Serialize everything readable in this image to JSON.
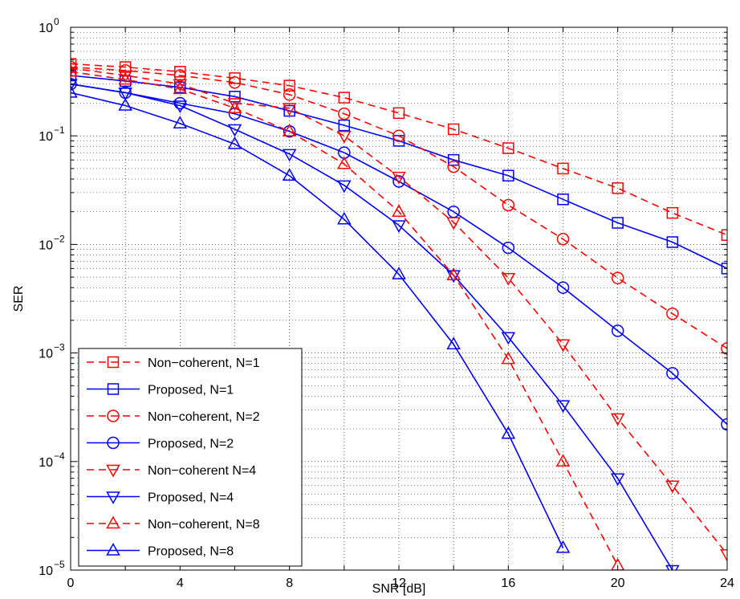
{
  "chart_data": {
    "type": "line",
    "title": "",
    "xlabel": "SNR [dB]",
    "ylabel": "SER",
    "xlim": [
      0,
      24
    ],
    "ylim": [
      1e-05,
      1
    ],
    "yscale": "log",
    "grid": true,
    "legend_position": "bottom-left",
    "x_ticks": [
      0,
      4,
      8,
      12,
      16,
      20,
      24
    ],
    "x_tick_labels": [
      "0",
      "4",
      "8",
      "12",
      "16",
      "20",
      "24"
    ],
    "y_ticks": [
      1e-05,
      0.0001,
      0.001,
      0.01,
      0.1,
      1
    ],
    "y_tick_labels": [
      {
        "base": "10",
        "exp": "−5"
      },
      {
        "base": "10",
        "exp": "−4"
      },
      {
        "base": "10",
        "exp": "−3"
      },
      {
        "base": "10",
        "exp": "−2"
      },
      {
        "base": "10",
        "exp": "−1"
      },
      {
        "base": "10",
        "exp": "0"
      }
    ],
    "series": [
      {
        "name": "Non−coherent, N=1",
        "color": "#ff0000",
        "dash": "dashed",
        "marker": "square",
        "x": [
          0,
          2,
          4,
          6,
          8,
          10,
          12,
          14,
          16,
          18,
          20,
          22,
          24
        ],
        "y": [
          0.46,
          0.43,
          0.39,
          0.34,
          0.29,
          0.225,
          0.162,
          0.115,
          0.077,
          0.05,
          0.033,
          0.0195,
          0.0122
        ]
      },
      {
        "name": "Proposed, N=1",
        "color": "#0000ff",
        "dash": "solid",
        "marker": "square",
        "x": [
          0,
          2,
          4,
          6,
          8,
          10,
          12,
          14,
          16,
          18,
          20,
          22,
          24
        ],
        "y": [
          0.36,
          0.32,
          0.28,
          0.23,
          0.17,
          0.125,
          0.09,
          0.06,
          0.043,
          0.026,
          0.0158,
          0.0105,
          0.006
        ]
      },
      {
        "name": "Non−coherent, N=2",
        "color": "#ff0000",
        "dash": "dashed",
        "marker": "circle",
        "x": [
          0,
          2,
          4,
          6,
          8,
          10,
          12,
          14,
          16,
          18,
          20,
          22,
          24
        ],
        "y": [
          0.43,
          0.4,
          0.36,
          0.31,
          0.24,
          0.16,
          0.1,
          0.052,
          0.023,
          0.0112,
          0.0049,
          0.0023,
          0.0011
        ]
      },
      {
        "name": "Proposed, N=2",
        "color": "#0000ff",
        "dash": "solid",
        "marker": "circle",
        "x": [
          0,
          2,
          4,
          6,
          8,
          10,
          12,
          14,
          16,
          18,
          20,
          22,
          24
        ],
        "y": [
          0.3,
          0.25,
          0.2,
          0.16,
          0.11,
          0.07,
          0.038,
          0.02,
          0.0093,
          0.004,
          0.0016,
          0.00065,
          0.00022
        ]
      },
      {
        "name": "Non−coherent N=4",
        "color": "#ff0000",
        "dash": "dashed",
        "marker": "triangle-down",
        "x": [
          0,
          2,
          4,
          6,
          8,
          10,
          12,
          14,
          16,
          18,
          20,
          22,
          24
        ],
        "y": [
          0.42,
          0.36,
          0.3,
          0.2,
          0.18,
          0.1,
          0.042,
          0.016,
          0.0049,
          0.0012,
          0.00025,
          6e-05,
          1.4e-05
        ]
      },
      {
        "name": "Proposed, N=4",
        "color": "#0000ff",
        "dash": "solid",
        "marker": "triangle-down",
        "x": [
          0,
          2,
          4,
          6,
          8,
          10,
          12,
          14,
          16,
          18,
          20,
          22
        ],
        "y": [
          0.3,
          0.25,
          0.19,
          0.115,
          0.068,
          0.035,
          0.015,
          0.0052,
          0.0014,
          0.00033,
          7e-05,
          1e-05
        ]
      },
      {
        "name": "Non−coherent, N=8",
        "color": "#ff0000",
        "dash": "dashed",
        "marker": "triangle-up",
        "x": [
          0,
          2,
          4,
          6,
          8,
          10,
          12,
          14,
          16,
          18,
          20
        ],
        "y": [
          0.39,
          0.33,
          0.27,
          0.18,
          0.11,
          0.055,
          0.02,
          0.0052,
          0.00088,
          0.0001,
          1.1e-05
        ]
      },
      {
        "name": "Proposed, N=8",
        "color": "#0000ff",
        "dash": "solid",
        "marker": "triangle-up",
        "x": [
          0,
          2,
          4,
          6,
          8,
          10,
          12,
          14,
          16,
          18
        ],
        "y": [
          0.25,
          0.19,
          0.13,
          0.084,
          0.043,
          0.017,
          0.0053,
          0.0012,
          0.00018,
          1.6e-05
        ]
      }
    ]
  }
}
